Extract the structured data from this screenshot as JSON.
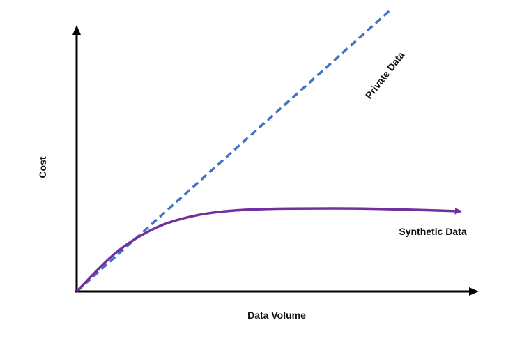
{
  "chart_data": {
    "type": "line",
    "title": "",
    "xlabel": "Data Volume",
    "ylabel": "Cost",
    "xlim": [
      0,
      100
    ],
    "ylim": [
      0,
      100
    ],
    "grid": false,
    "legend": "none",
    "series": [
      {
        "name": "Private Data",
        "style": "dashed",
        "color": "#4472C4",
        "x": [
          0,
          20,
          40,
          60,
          80
        ],
        "y": [
          0,
          20,
          40,
          60,
          80
        ]
      },
      {
        "name": "Synthetic Data",
        "style": "solid",
        "color": "#7030A0",
        "x": [
          0,
          10,
          20,
          30,
          40,
          50,
          60,
          70,
          80,
          90,
          98
        ],
        "y": [
          0,
          11,
          18,
          21.5,
          23,
          23.5,
          23.6,
          23.6,
          23.4,
          23.1,
          22.8
        ]
      }
    ]
  }
}
